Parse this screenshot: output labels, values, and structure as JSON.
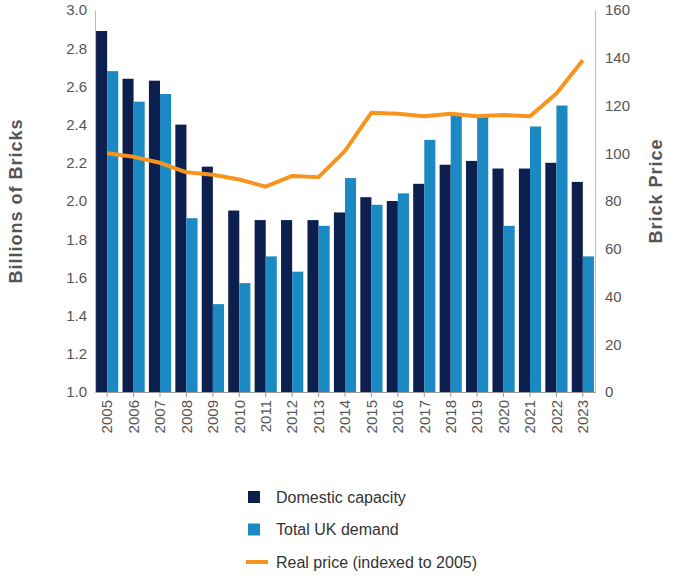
{
  "chart_data": {
    "type": "bar",
    "y_label": "Billions of Bricks",
    "y2_label": "Brick Price",
    "categories": [
      "2005",
      "2006",
      "2007",
      "2008",
      "2009",
      "2010",
      "2011",
      "2012",
      "2013",
      "2014",
      "2015",
      "2016",
      "2017",
      "2018",
      "2019",
      "2020",
      "2021",
      "2022",
      "2023"
    ],
    "series": [
      {
        "name": "Domestic capacity",
        "type": "bar",
        "color": "#0c1f4e",
        "values": [
          2.89,
          2.64,
          2.63,
          2.4,
          2.18,
          1.95,
          1.9,
          1.9,
          1.9,
          1.94,
          2.02,
          2.0,
          2.09,
          2.19,
          2.21,
          2.17,
          2.17,
          2.2,
          2.1
        ]
      },
      {
        "name": "Total UK demand",
        "type": "bar",
        "color": "#1b8ac4",
        "values": [
          2.68,
          2.52,
          2.56,
          1.91,
          1.46,
          1.57,
          1.71,
          1.63,
          1.87,
          2.12,
          1.98,
          2.04,
          2.32,
          2.45,
          2.45,
          1.87,
          2.39,
          2.5,
          1.71
        ]
      },
      {
        "name": "Real price (indexed to 2005)",
        "type": "line",
        "axis": "y2",
        "color": "#f7941d",
        "values": [
          100,
          98.5,
          96,
          92,
          91,
          89,
          86,
          90.5,
          90,
          101,
          117,
          116.5,
          115.5,
          116.5,
          115.5,
          116,
          115.5,
          125,
          139
        ]
      }
    ],
    "ylim": [
      1.0,
      3.0
    ],
    "yticks": [
      {
        "value": 1.0,
        "label": "1.0"
      },
      1.2,
      1.4,
      1.6,
      1.8,
      {
        "value": 2.0,
        "label": "2.0"
      },
      2.2,
      2.4,
      2.6,
      2.8,
      {
        "value": 3.0,
        "label": "3.0"
      }
    ],
    "y2lim": [
      0,
      160
    ],
    "y2ticks": [
      0,
      20,
      40,
      60,
      80,
      100,
      120,
      140,
      160
    ],
    "grid": false,
    "legend": "bottom"
  }
}
